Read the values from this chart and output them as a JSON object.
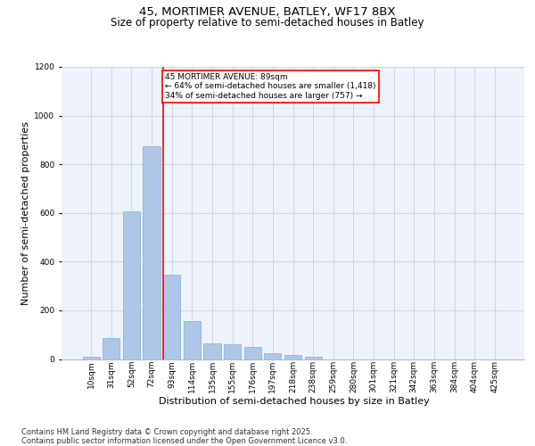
{
  "title_line1": "45, MORTIMER AVENUE, BATLEY, WF17 8BX",
  "title_line2": "Size of property relative to semi-detached houses in Batley",
  "xlabel": "Distribution of semi-detached houses by size in Batley",
  "ylabel": "Number of semi-detached properties",
  "categories": [
    "10sqm",
    "31sqm",
    "52sqm",
    "72sqm",
    "93sqm",
    "114sqm",
    "135sqm",
    "155sqm",
    "176sqm",
    "197sqm",
    "218sqm",
    "238sqm",
    "259sqm",
    "280sqm",
    "301sqm",
    "321sqm",
    "342sqm",
    "363sqm",
    "384sqm",
    "404sqm",
    "425sqm"
  ],
  "values": [
    10,
    85,
    605,
    875,
    345,
    155,
    65,
    60,
    48,
    22,
    18,
    8,
    0,
    0,
    0,
    0,
    0,
    0,
    0,
    0,
    0
  ],
  "bar_color": "#aec6e8",
  "bar_edge_color": "#7bafd4",
  "grid_color": "#c8d0e0",
  "bg_color": "#eef2fa",
  "annotation_line1": "45 MORTIMER AVENUE: 89sqm",
  "annotation_line2": "← 64% of semi-detached houses are smaller (1,418)",
  "annotation_line3": "34% of semi-detached houses are larger (757) →",
  "annotation_box_color": "#ff0000",
  "property_line_x": 3.57,
  "ylim": [
    0,
    1200
  ],
  "yticks": [
    0,
    200,
    400,
    600,
    800,
    1000,
    1200
  ],
  "footer_line1": "Contains HM Land Registry data © Crown copyright and database right 2025.",
  "footer_line2": "Contains public sector information licensed under the Open Government Licence v3.0.",
  "title_fontsize": 9.5,
  "subtitle_fontsize": 8.5,
  "axis_label_fontsize": 8,
  "tick_fontsize": 6.5,
  "annotation_fontsize": 6.5,
  "footer_fontsize": 6
}
